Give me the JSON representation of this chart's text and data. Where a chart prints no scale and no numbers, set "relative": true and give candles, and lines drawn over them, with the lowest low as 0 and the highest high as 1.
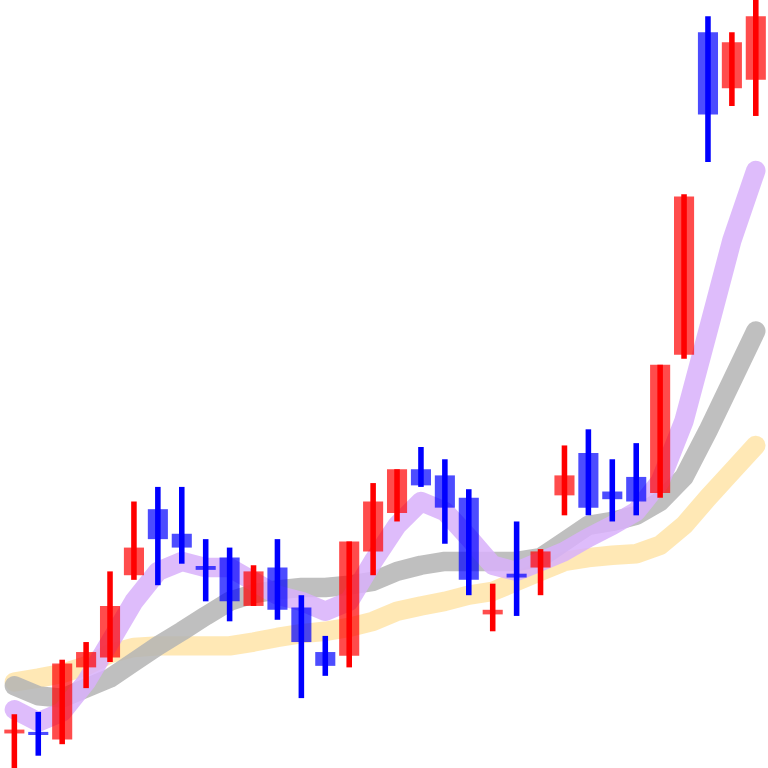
{
  "chart_data": {
    "type": "candlestick",
    "relative": true,
    "categories": [
      null,
      null,
      null,
      null,
      null,
      null,
      null,
      null,
      null,
      null,
      null,
      null,
      null,
      null,
      null,
      null,
      null,
      null,
      null,
      null,
      null,
      null,
      null,
      null,
      null,
      null,
      null,
      null,
      null,
      null,
      null,
      null
    ],
    "ohlc": [
      [
        0.045,
        0.07,
        0,
        0.05
      ],
      [
        0.046,
        0.073,
        0.016,
        0.043
      ],
      [
        0.037,
        0.141,
        0.031,
        0.136
      ],
      [
        0.131,
        0.164,
        0.104,
        0.151
      ],
      [
        0.144,
        0.256,
        0.138,
        0.211
      ],
      [
        0.251,
        0.347,
        0.245,
        0.287
      ],
      [
        0.337,
        0.366,
        0.238,
        0.298
      ],
      [
        0.305,
        0.366,
        0.266,
        0.287
      ],
      [
        0.263,
        0.298,
        0.217,
        0.258
      ],
      [
        0.274,
        0.287,
        0.191,
        0.217
      ],
      [
        0.211,
        0.264,
        0.211,
        0.256
      ],
      [
        0.261,
        0.298,
        0.193,
        0.206
      ],
      [
        0.209,
        0.225,
        0.091,
        0.164
      ],
      [
        0.151,
        0.172,
        0.12,
        0.133
      ],
      [
        0.146,
        0.295,
        0.131,
        0.295
      ],
      [
        0.282,
        0.371,
        0.251,
        0.347
      ],
      [
        0.332,
        0.389,
        0.321,
        0.389
      ],
      [
        0.389,
        0.418,
        0.366,
        0.368
      ],
      [
        0.381,
        0.402,
        0.292,
        0.339
      ],
      [
        0.352,
        0.363,
        0.225,
        0.245
      ],
      [
        0.2,
        0.24,
        0.178,
        0.206
      ],
      [
        0.253,
        0.321,
        0.198,
        0.248
      ],
      [
        0.261,
        0.285,
        0.225,
        0.282
      ],
      [
        0.355,
        0.42,
        0.329,
        0.381
      ],
      [
        0.41,
        0.441,
        0.329,
        0.339
      ],
      [
        0.36,
        0.402,
        0.321,
        0.35
      ],
      [
        0.379,
        0.423,
        0.329,
        0.347
      ],
      [
        0.358,
        0.525,
        0.352,
        0.525
      ],
      [
        0.538,
        0.747,
        0.533,
        0.744
      ],
      [
        0.958,
        0.979,
        0.789,
        0.851
      ],
      [
        0.885,
        0.958,
        0.862,
        0.945
      ],
      [
        0.896,
        1,
        0.849,
        0.979
      ]
    ],
    "colors": [
      "#ff0000",
      "#0000ff",
      "#ff0000",
      "#ff0000",
      "#ff0000",
      "#ff0000",
      "#0000ff",
      "#0000ff",
      "#0000ff",
      "#0000ff",
      "#ff0000",
      "#0000ff",
      "#0000ff",
      "#0000ff",
      "#ff0000",
      "#ff0000",
      "#ff0000",
      "#0000ff",
      "#0000ff",
      "#0000ff",
      "#ff0000",
      "#0000ff",
      "#ff0000",
      "#ff0000",
      "#0000ff",
      "#0000ff",
      "#0000ff",
      "#ff0000",
      "#ff0000",
      "#0000ff",
      "#ff0000",
      "#ff0000"
    ],
    "series": [
      {
        "type": "line",
        "color": "#ffe4a8",
        "values": [
          0.112,
          0.117,
          0.123,
          0.133,
          0.149,
          0.157,
          0.159,
          0.159,
          0.159,
          0.159,
          0.164,
          0.17,
          0.175,
          0.178,
          0.183,
          0.191,
          0.204,
          0.211,
          0.217,
          0.225,
          0.23,
          0.243,
          0.256,
          0.269,
          0.274,
          0.277,
          0.279,
          0.29,
          0.316,
          0.352,
          0.386,
          0.42
        ]
      },
      {
        "type": "line",
        "color": "#b4b4b4",
        "values": [
          0.107,
          0.094,
          0.091,
          0.104,
          0.117,
          0.138,
          0.159,
          0.178,
          0.198,
          0.217,
          0.227,
          0.232,
          0.235,
          0.235,
          0.238,
          0.243,
          0.256,
          0.264,
          0.269,
          0.269,
          0.269,
          0.269,
          0.274,
          0.295,
          0.316,
          0.321,
          0.329,
          0.347,
          0.379,
          0.439,
          0.504,
          0.569
        ]
      },
      {
        "type": "line",
        "color": "#d8b0fa",
        "values": [
          0.076,
          0.06,
          0.073,
          0.112,
          0.164,
          0.217,
          0.256,
          0.269,
          0.261,
          0.261,
          0.243,
          0.225,
          0.217,
          0.204,
          0.217,
          0.269,
          0.316,
          0.347,
          0.334,
          0.3,
          0.264,
          0.256,
          0.269,
          0.282,
          0.3,
          0.316,
          0.334,
          0.373,
          0.452,
          0.569,
          0.687,
          0.778
        ]
      }
    ]
  }
}
